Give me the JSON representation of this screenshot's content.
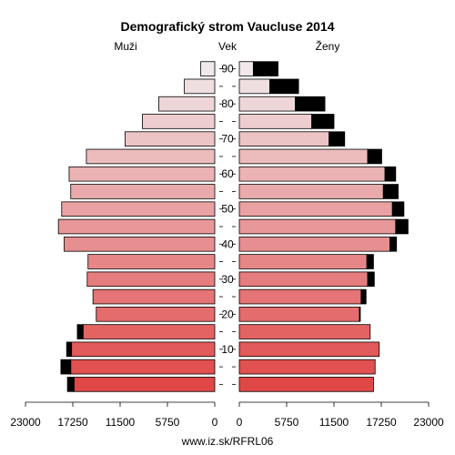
{
  "chart_data": {
    "type": "bar",
    "title": "Demografický strom Vaucluse 2014",
    "left_label": "Muži",
    "center_label": "Vek",
    "right_label": "Ženy",
    "footer": "www.iz.sk/RFRL06",
    "xlim": [
      0,
      23000
    ],
    "x_ticks": [
      23000,
      17250,
      11500,
      5750,
      0
    ],
    "x_tick_labels": [
      "23000",
      "17250",
      "11500",
      "5750",
      "0"
    ],
    "y_tick_labels": [
      "10",
      "20",
      "30",
      "40",
      "50",
      "60",
      "70",
      "80",
      "90"
    ],
    "age_groups": [
      "0-4",
      "5-9",
      "10-14",
      "15-19",
      "20-24",
      "25-29",
      "30-34",
      "35-39",
      "40-44",
      "45-49",
      "50-54",
      "55-59",
      "60-64",
      "65-69",
      "70-74",
      "75-79",
      "80-84",
      "85-89",
      "90+"
    ],
    "series": [
      {
        "name": "Muži",
        "values": [
          17100,
          17500,
          17400,
          16000,
          14400,
          14800,
          15500,
          15400,
          18300,
          19000,
          18600,
          17500,
          17700,
          15600,
          10900,
          8800,
          6800,
          3700,
          1700
        ],
        "excess": [
          800,
          1200,
          600,
          700,
          0,
          0,
          0,
          0,
          0,
          0,
          0,
          0,
          0,
          0,
          0,
          0,
          0,
          0,
          0
        ]
      },
      {
        "name": "Ženy",
        "values": [
          16300,
          16500,
          17000,
          15900,
          14600,
          14800,
          15600,
          15500,
          18300,
          19000,
          18600,
          17500,
          17700,
          15600,
          10900,
          8800,
          6800,
          3700,
          1700
        ],
        "excess": [
          0,
          0,
          0,
          0,
          100,
          600,
          800,
          800,
          800,
          1500,
          1400,
          1800,
          1300,
          1700,
          1900,
          2700,
          3600,
          3500,
          3000
        ]
      }
    ],
    "colors": {
      "bar_bottom": "#e04848",
      "bar_top": "#f0e8ea",
      "excess": "#000000"
    }
  }
}
